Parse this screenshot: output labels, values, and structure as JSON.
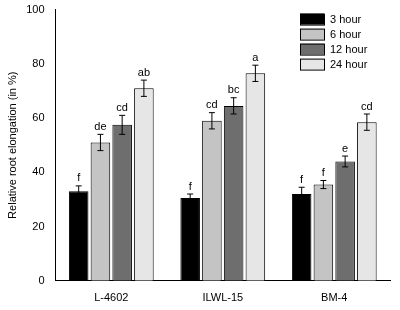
{
  "chart_data": {
    "type": "bar",
    "categories": [
      "L-4602",
      "ILWL-15",
      "BM-4"
    ],
    "series": [
      {
        "name": "3 hour",
        "color": "#000000",
        "values": [
          33,
          30.5,
          32
        ],
        "errors": [
          2,
          1.5,
          2.5
        ],
        "annotations": [
          "f",
          "f",
          "f"
        ]
      },
      {
        "name": "6 hour",
        "color": "#c4c4c4",
        "values": [
          51,
          59,
          35.5
        ],
        "errors": [
          3,
          3,
          1.5
        ],
        "annotations": [
          "de",
          "cd",
          "f"
        ]
      },
      {
        "name": "12 hour",
        "color": "#6e6e6e",
        "values": [
          57.5,
          64.5,
          44
        ],
        "errors": [
          3.5,
          3,
          2
        ],
        "annotations": [
          "cd",
          "bc",
          "e"
        ]
      },
      {
        "name": "24 hour",
        "color": "#e6e6e6",
        "values": [
          71,
          76.5,
          58.5
        ],
        "errors": [
          3,
          3,
          3
        ],
        "annotations": [
          "ab",
          "a",
          "cd"
        ]
      }
    ],
    "y_label": "Relative root elongation (in %)",
    "ylim": [
      0,
      100
    ],
    "yticks": [
      0,
      20,
      40,
      60,
      80,
      100
    ],
    "grid": false,
    "legend": "upper right"
  }
}
